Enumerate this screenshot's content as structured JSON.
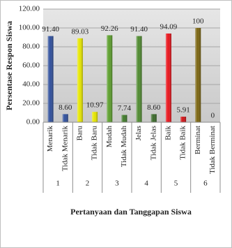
{
  "chart_data": {
    "type": "bar",
    "y_label": "Persentase Respon Siswa",
    "x_label": "Pertanyaan dan Tanggapan Siswa",
    "categories": [
      "Menarik",
      "Tidak Menarik",
      "Baru",
      "Tidak Baru",
      "Mudah",
      "Tidak Mudah",
      "Jelas",
      "Tidak Jelas",
      "Baik",
      "Tidak Baik",
      "Berminat",
      "Tidak Berminat"
    ],
    "groups": [
      "1",
      "2",
      "3",
      "4",
      "5",
      "6"
    ],
    "values": [
      91.4,
      8.6,
      89.03,
      10.97,
      92.26,
      7.74,
      91.4,
      8.6,
      94.09,
      5.91,
      100,
      0
    ],
    "value_labels": [
      "91.40",
      "8.60",
      "89.03",
      "10.97",
      "92.26",
      "7.74",
      "91.40",
      "8.60",
      "94.09",
      "5.91",
      "100",
      "0"
    ],
    "colors": [
      "#2f4f9c",
      "#2f4f9c",
      "#e6e600",
      "#e6e600",
      "#5c9e2c",
      "#3f7a2a",
      "#4f8a30",
      "#3a6a2a",
      "#e8141c",
      "#d01418",
      "#7a6410",
      "#7a6410"
    ],
    "ylim": [
      0,
      120
    ],
    "yticks": [
      {
        "value": 0,
        "label": "0.00"
      },
      {
        "value": 20,
        "label": "20.00"
      },
      {
        "value": 40,
        "label": "40.00"
      },
      {
        "value": 60,
        "label": "60.00"
      },
      {
        "value": 80,
        "label": "80.00"
      },
      {
        "value": 100,
        "label": "100.00"
      },
      {
        "value": 120,
        "label": "120.00"
      }
    ],
    "grid": true
  }
}
